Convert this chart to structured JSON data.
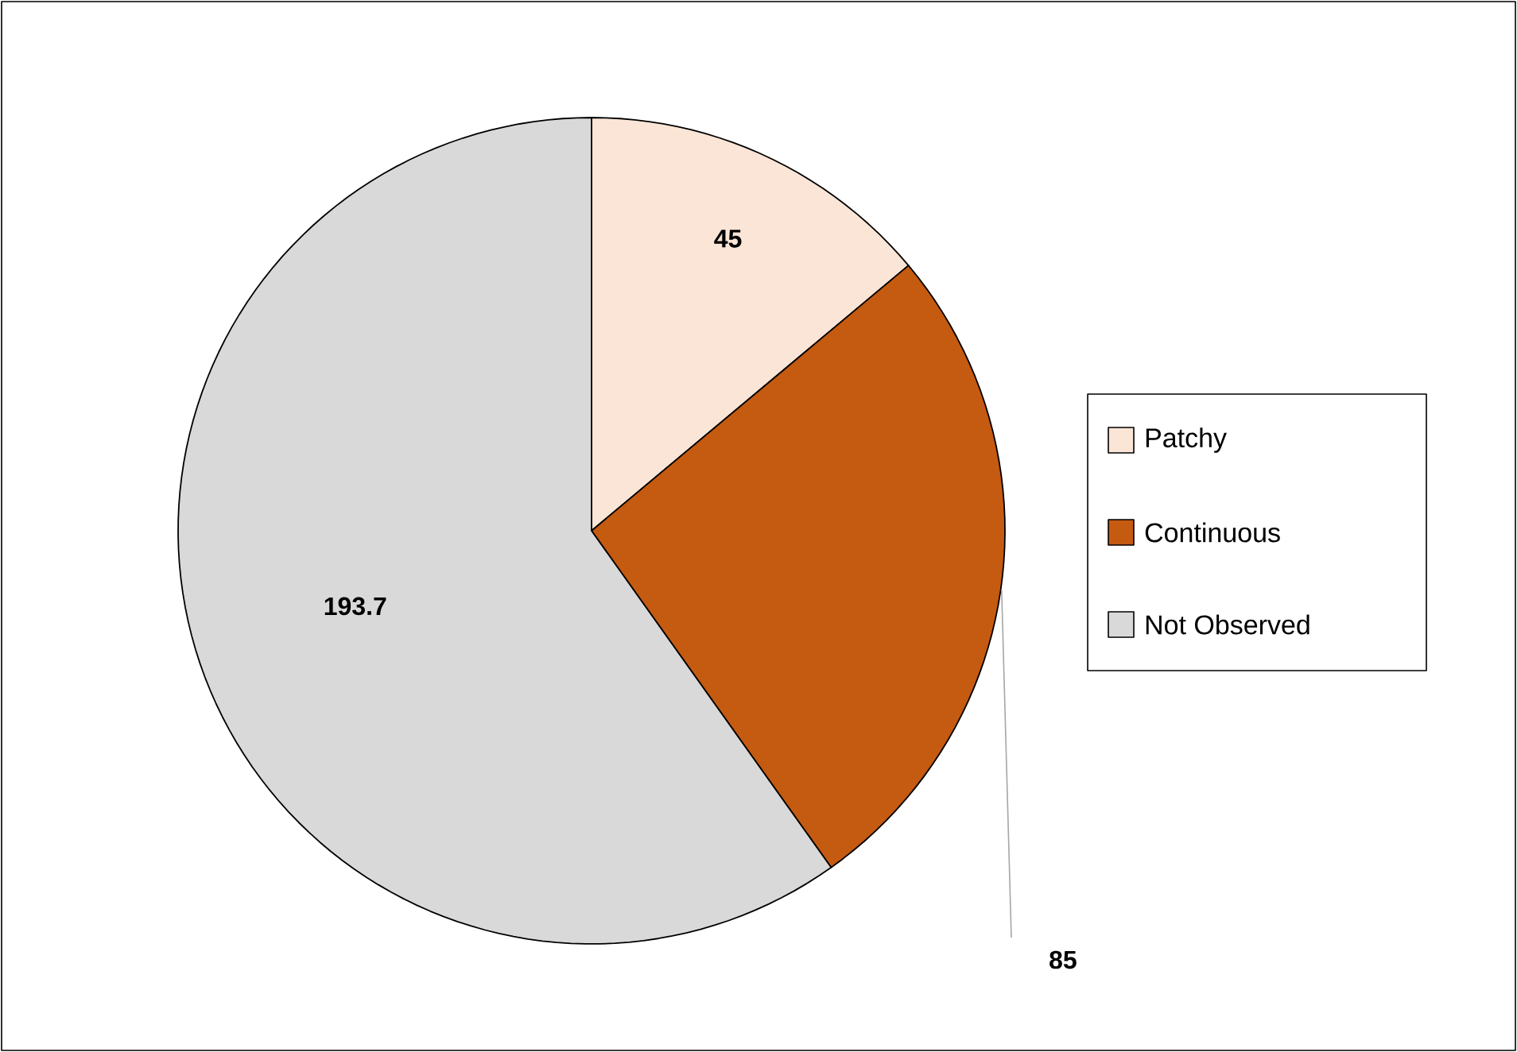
{
  "chart_data": {
    "type": "pie",
    "categories": [
      "Patchy",
      "Continuous",
      "Not Observed"
    ],
    "values": [
      45,
      85,
      193.7
    ],
    "colors": [
      "#fbe5d6",
      "#c55a11",
      "#d9d9d9"
    ],
    "data_labels": true,
    "legend": "right"
  }
}
